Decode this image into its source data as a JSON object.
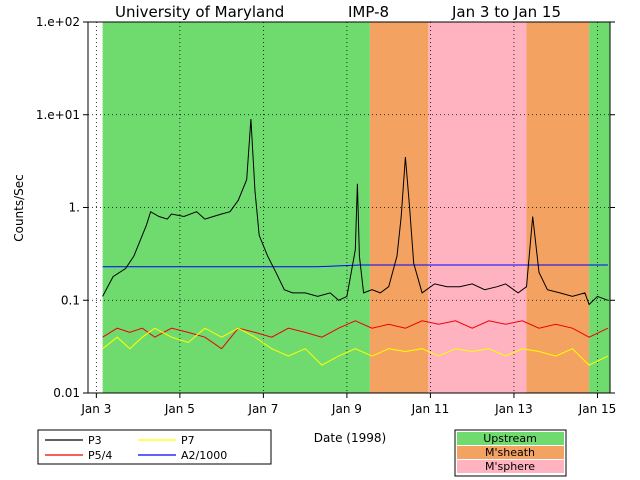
{
  "chart_data": {
    "type": "line",
    "title": {
      "institution": "University of Maryland",
      "spacecraft": "IMP-8",
      "range": "Jan 3 to Jan 15"
    },
    "xlabel": "Date (1998)",
    "ylabel": "Counts/Sec",
    "yscale": "log",
    "ylim": [
      0.01,
      100
    ],
    "xlim": [
      3.0,
      15.5
    ],
    "x_units": "day of January 1998",
    "x_ticks": [
      {
        "value": 3.2,
        "label": "Jan 3"
      },
      {
        "value": 5.2,
        "label": "Jan 5"
      },
      {
        "value": 7.2,
        "label": "Jan 7"
      },
      {
        "value": 9.2,
        "label": "Jan 9"
      },
      {
        "value": 11.2,
        "label": "Jan 11"
      },
      {
        "value": 13.2,
        "label": "Jan 13"
      },
      {
        "value": 15.2,
        "label": "Jan 15"
      }
    ],
    "y_ticks": [
      {
        "value": 0.01,
        "label": "0.01"
      },
      {
        "value": 0.1,
        "label": "0.1"
      },
      {
        "value": 1,
        "label": "1."
      },
      {
        "value": 10,
        "label": "1.e+01"
      },
      {
        "value": 100,
        "label": "1.e+02"
      }
    ],
    "grid": true,
    "regions": [
      {
        "start": 3.35,
        "end": 9.75,
        "region": "Upstream"
      },
      {
        "start": 9.75,
        "end": 11.15,
        "region": "M'sheath"
      },
      {
        "start": 11.15,
        "end": 13.5,
        "region": "M'sphere"
      },
      {
        "start": 13.5,
        "end": 15.0,
        "region": "M'sheath"
      },
      {
        "start": 15.0,
        "end": 15.5,
        "region": "Upstream"
      }
    ],
    "region_legend": [
      {
        "name": "Upstream",
        "color": "#6fdb6f"
      },
      {
        "name": "M'sheath",
        "color": "#f4a261"
      },
      {
        "name": "M'sphere",
        "color": "#ffb3c0"
      }
    ],
    "series": [
      {
        "name": "P3",
        "color": "#000000",
        "x": [
          3.35,
          3.6,
          3.9,
          4.1,
          4.4,
          4.5,
          4.7,
          4.9,
          5.0,
          5.3,
          5.6,
          5.8,
          6.0,
          6.2,
          6.4,
          6.6,
          6.8,
          6.9,
          7.0,
          7.1,
          7.3,
          7.5,
          7.7,
          7.9,
          8.2,
          8.5,
          8.8,
          9.0,
          9.2,
          9.4,
          9.45,
          9.5,
          9.6,
          9.8,
          10.0,
          10.2,
          10.4,
          10.5,
          10.6,
          10.7,
          10.8,
          11.0,
          11.3,
          11.6,
          11.9,
          12.2,
          12.5,
          12.8,
          13.0,
          13.3,
          13.5,
          13.65,
          13.8,
          14.0,
          14.3,
          14.6,
          14.9,
          15.0,
          15.2,
          15.45
        ],
        "values": [
          0.11,
          0.18,
          0.22,
          0.3,
          0.65,
          0.9,
          0.8,
          0.75,
          0.85,
          0.8,
          0.9,
          0.75,
          0.8,
          0.85,
          0.9,
          1.2,
          2.0,
          9.0,
          1.5,
          0.5,
          0.3,
          0.2,
          0.13,
          0.12,
          0.12,
          0.11,
          0.12,
          0.1,
          0.11,
          0.35,
          1.8,
          0.3,
          0.12,
          0.13,
          0.12,
          0.14,
          0.3,
          0.8,
          3.5,
          1.0,
          0.25,
          0.12,
          0.15,
          0.14,
          0.14,
          0.15,
          0.13,
          0.14,
          0.15,
          0.12,
          0.14,
          0.8,
          0.2,
          0.13,
          0.12,
          0.11,
          0.12,
          0.09,
          0.11,
          0.1
        ]
      },
      {
        "name": "P5/4",
        "color": "#ee0000",
        "x": [
          3.35,
          3.7,
          4.0,
          4.3,
          4.6,
          5.0,
          5.4,
          5.8,
          6.2,
          6.6,
          7.0,
          7.4,
          7.8,
          8.2,
          8.6,
          9.0,
          9.4,
          9.8,
          10.2,
          10.6,
          11.0,
          11.4,
          11.8,
          12.2,
          12.6,
          13.0,
          13.4,
          13.8,
          14.2,
          14.6,
          15.0,
          15.45
        ],
        "values": [
          0.04,
          0.05,
          0.045,
          0.05,
          0.04,
          0.05,
          0.045,
          0.04,
          0.03,
          0.05,
          0.045,
          0.04,
          0.05,
          0.045,
          0.04,
          0.05,
          0.06,
          0.05,
          0.055,
          0.05,
          0.06,
          0.055,
          0.06,
          0.05,
          0.06,
          0.055,
          0.06,
          0.05,
          0.055,
          0.05,
          0.04,
          0.05
        ]
      },
      {
        "name": "P7",
        "color": "#ffff00",
        "x": [
          3.35,
          3.7,
          4.0,
          4.3,
          4.6,
          5.0,
          5.4,
          5.8,
          6.2,
          6.6,
          7.0,
          7.4,
          7.8,
          8.2,
          8.6,
          9.0,
          9.4,
          9.8,
          10.2,
          10.6,
          11.0,
          11.4,
          11.8,
          12.2,
          12.6,
          13.0,
          13.4,
          13.8,
          14.2,
          14.6,
          15.0,
          15.45
        ],
        "values": [
          0.03,
          0.04,
          0.03,
          0.04,
          0.05,
          0.04,
          0.035,
          0.05,
          0.04,
          0.05,
          0.04,
          0.03,
          0.025,
          0.03,
          0.02,
          0.025,
          0.03,
          0.025,
          0.03,
          0.028,
          0.03,
          0.025,
          0.03,
          0.028,
          0.03,
          0.025,
          0.03,
          0.028,
          0.025,
          0.03,
          0.02,
          0.025
        ]
      },
      {
        "name": "A2/1000",
        "color": "#0000ff",
        "x": [
          3.35,
          4.5,
          5.5,
          6.5,
          7.5,
          8.5,
          9.5,
          10.5,
          11.5,
          12.5,
          13.5,
          14.5,
          15.45
        ],
        "values": [
          0.23,
          0.23,
          0.23,
          0.23,
          0.23,
          0.23,
          0.24,
          0.24,
          0.24,
          0.24,
          0.24,
          0.24,
          0.24
        ]
      }
    ]
  }
}
